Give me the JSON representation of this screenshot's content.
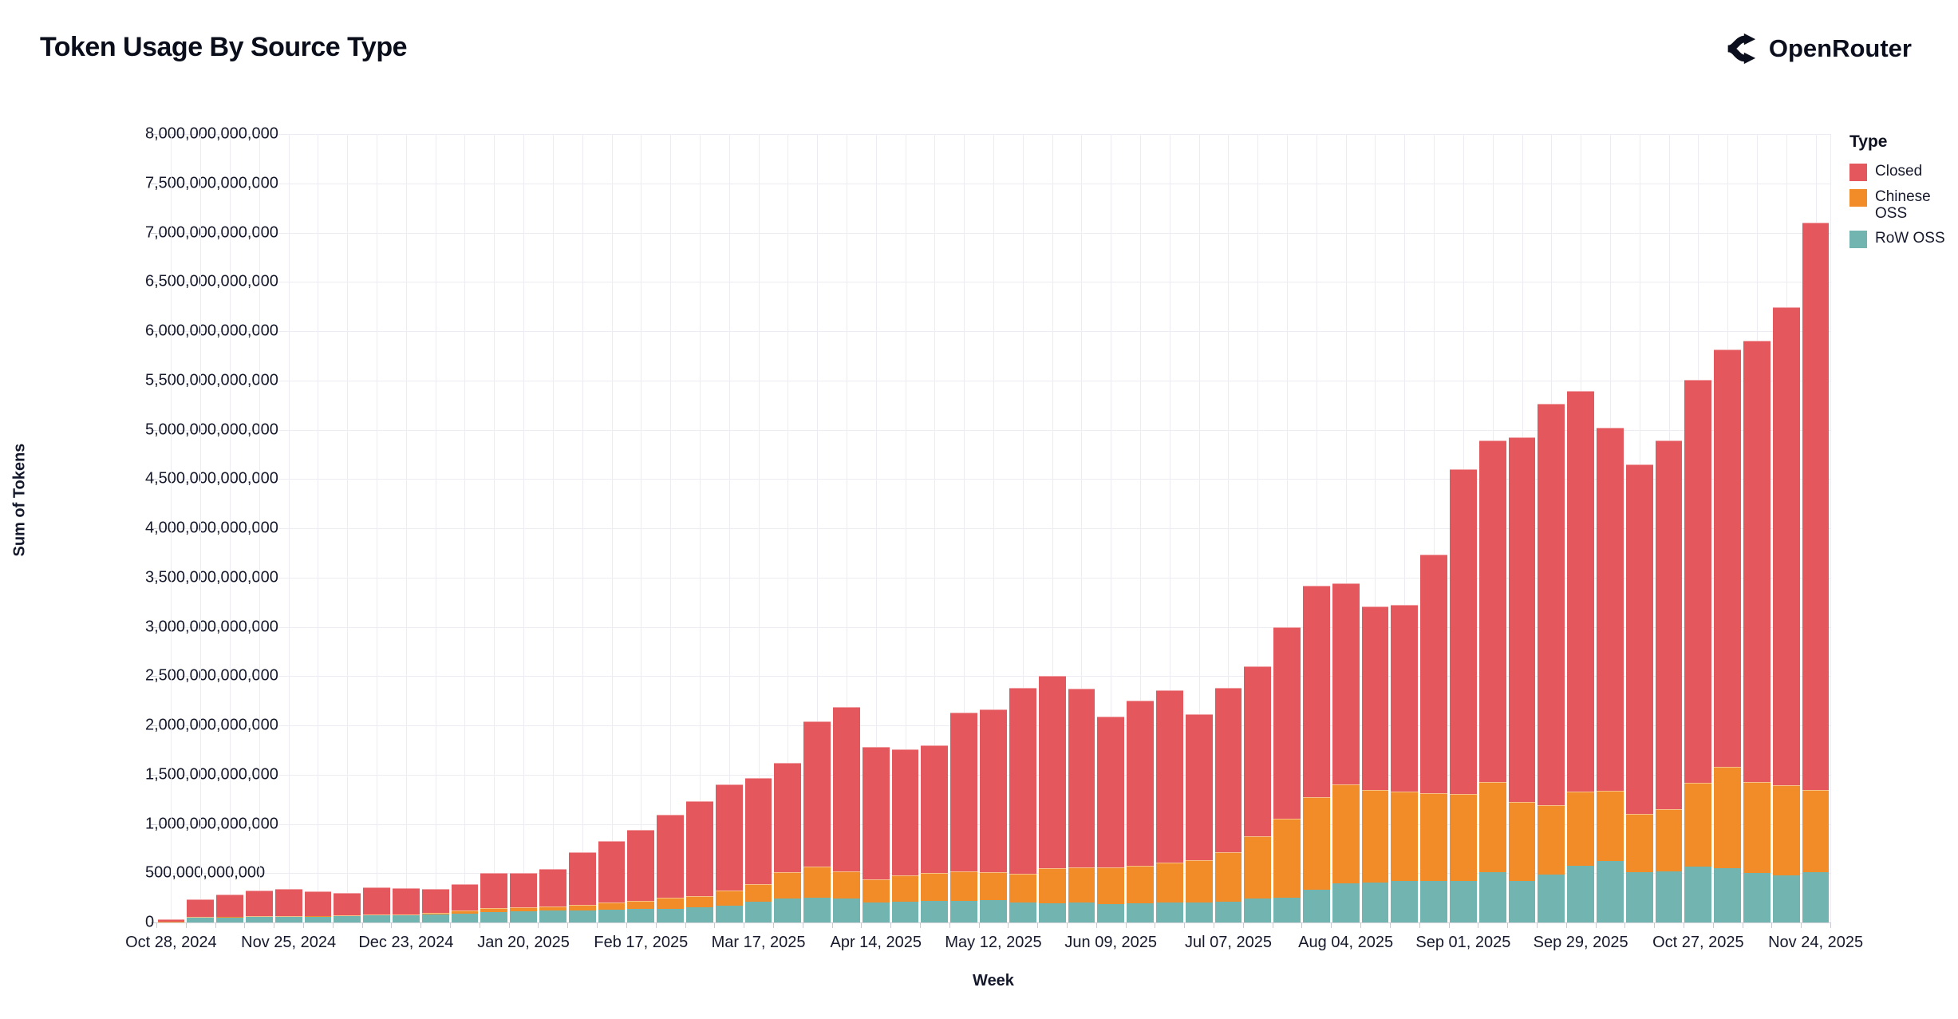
{
  "page": {
    "title": "Token Usage By Source Type",
    "brand": "OpenRouter"
  },
  "legend": {
    "title": "Type",
    "items": [
      {
        "label": "Closed",
        "color": "#e4575c"
      },
      {
        "label": "Chinese OSS",
        "color": "#f28c28"
      },
      {
        "label": "RoW OSS",
        "color": "#72b5b0"
      }
    ]
  },
  "chart_data": {
    "type": "bar",
    "stacked": true,
    "title": "Token Usage By Source Type",
    "xlabel": "Week",
    "ylabel": "Sum of Tokens",
    "unit": "tokens",
    "values_unit": "billions_of_tokens",
    "ylim_billions": [
      0,
      8000
    ],
    "ytick_step_billions": 500,
    "grid": true,
    "legend_position": "right",
    "x_tick_label_every": 4,
    "x_tick_labels": [
      "Oct 28, 2024",
      "Nov 25, 2024",
      "Dec 23, 2024",
      "Jan 20, 2025",
      "Feb 17, 2025",
      "Mar 17, 2025",
      "Apr 14, 2025",
      "May 12, 2025",
      "Jun 09, 2025",
      "Jul 07, 2025",
      "Aug 04, 2025",
      "Sep 01, 2025",
      "Sep 29, 2025",
      "Oct 27, 2025",
      "Nov 24, 2025"
    ],
    "categories": [
      "Oct 28, 2024",
      "Nov 04, 2024",
      "Nov 11, 2024",
      "Nov 18, 2024",
      "Nov 25, 2024",
      "Dec 02, 2024",
      "Dec 09, 2024",
      "Dec 16, 2024",
      "Dec 23, 2024",
      "Dec 30, 2024",
      "Jan 06, 2025",
      "Jan 13, 2025",
      "Jan 20, 2025",
      "Jan 27, 2025",
      "Feb 03, 2025",
      "Feb 10, 2025",
      "Feb 17, 2025",
      "Feb 24, 2025",
      "Mar 03, 2025",
      "Mar 10, 2025",
      "Mar 17, 2025",
      "Mar 24, 2025",
      "Mar 31, 2025",
      "Apr 07, 2025",
      "Apr 14, 2025",
      "Apr 21, 2025",
      "Apr 28, 2025",
      "May 05, 2025",
      "May 12, 2025",
      "May 19, 2025",
      "May 26, 2025",
      "Jun 02, 2025",
      "Jun 09, 2025",
      "Jun 16, 2025",
      "Jun 23, 2025",
      "Jun 30, 2025",
      "Jul 07, 2025",
      "Jul 14, 2025",
      "Jul 21, 2025",
      "Jul 28, 2025",
      "Aug 04, 2025",
      "Aug 11, 2025",
      "Aug 18, 2025",
      "Aug 25, 2025",
      "Sep 01, 2025",
      "Sep 08, 2025",
      "Sep 15, 2025",
      "Sep 22, 2025",
      "Sep 29, 2025",
      "Oct 06, 2025",
      "Oct 13, 2025",
      "Oct 20, 2025",
      "Oct 27, 2025",
      "Nov 03, 2025",
      "Nov 10, 2025",
      "Nov 17, 2025",
      "Nov 24, 2025"
    ],
    "stack_order_bottom_to_top": [
      "RoW OSS",
      "Chinese OSS",
      "Closed"
    ],
    "series": [
      {
        "name": "RoW OSS",
        "color": "#72b5b0",
        "values_billions": [
          8,
          52,
          55,
          58,
          60,
          62,
          65,
          70,
          72,
          80,
          90,
          105,
          112,
          118,
          125,
          130,
          135,
          140,
          150,
          168,
          209,
          241,
          250,
          245,
          200,
          209,
          217,
          217,
          223,
          205,
          195,
          201,
          187,
          195,
          201,
          201,
          209,
          241,
          255,
          331,
          393,
          404,
          420,
          420,
          420,
          507,
          420,
          488,
          575,
          621,
          507,
          515,
          567,
          548,
          499,
          480,
          507
        ]
      },
      {
        "name": "Chinese OSS",
        "color": "#f28c28",
        "values_billions": [
          2,
          3,
          4,
          5,
          6,
          6,
          8,
          9,
          12,
          20,
          30,
          40,
          45,
          48,
          55,
          75,
          85,
          110,
          120,
          155,
          181,
          266,
          317,
          270,
          240,
          271,
          282,
          298,
          284,
          290,
          353,
          360,
          374,
          380,
          409,
          428,
          501,
          637,
          799,
          940,
          1008,
          937,
          908,
          892,
          881,
          921,
          805,
          702,
          750,
          718,
          596,
          634,
          848,
          1035,
          924,
          916,
          840
        ]
      },
      {
        "name": "Closed",
        "color": "#e4575c",
        "values_billions": [
          20,
          180,
          225,
          262,
          272,
          249,
          225,
          281,
          268,
          244,
          267,
          355,
          344,
          374,
          530,
          621,
          720,
          840,
          962,
          1082,
          1076,
          1110,
          1471,
          1672,
          1341,
          1279,
          1301,
          1618,
          1659,
          1882,
          1951,
          1808,
          1526,
          1680,
          1746,
          1482,
          1667,
          1722,
          1946,
          2149,
          2039,
          1869,
          1892,
          2418,
          3299,
          3462,
          3695,
          4070,
          4065,
          3681,
          3547,
          3741,
          4095,
          4227,
          4477,
          4844,
          5753
        ]
      }
    ]
  }
}
